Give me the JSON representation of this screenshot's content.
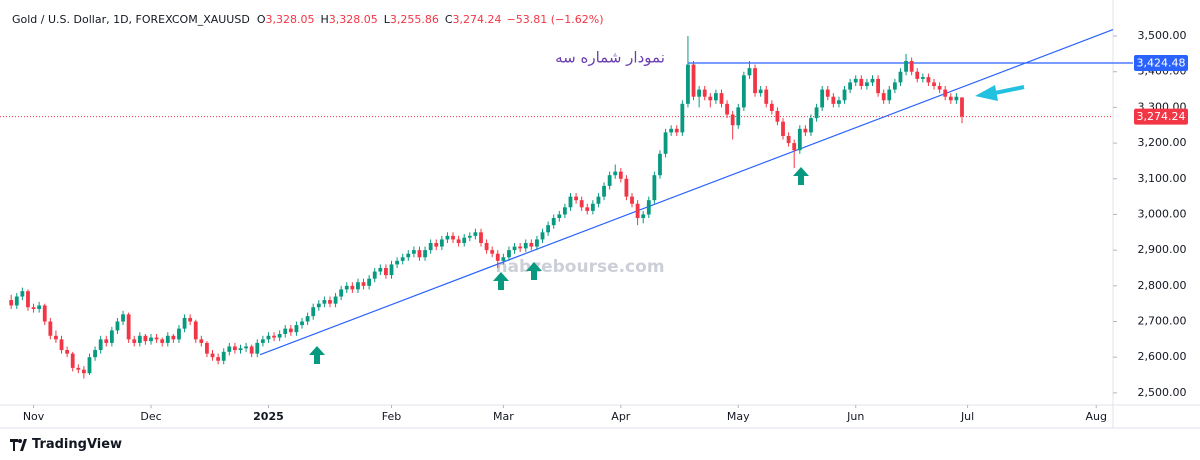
{
  "header": {
    "symbol": "Gold / U.S. Dollar, 1D, FOREXCOM_XAUUSD",
    "ohlc": [
      {
        "key": "O",
        "value": "3,328.05"
      },
      {
        "key": "H",
        "value": "3,328.05"
      },
      {
        "key": "L",
        "value": "3,255.86"
      },
      {
        "key": "C",
        "value": "3,274.24"
      }
    ],
    "change": "−53.81 (−1.62%)"
  },
  "chart_data": {
    "type": "candlestick",
    "up_color": "#089981",
    "down_color": "#f23645",
    "grid": false,
    "ylim": [
      2466,
      3601
    ],
    "yticks": [
      {
        "value": 2500,
        "label": "2,500.00"
      },
      {
        "value": 2600,
        "label": "2,600.00"
      },
      {
        "value": 2700,
        "label": "2,700.00"
      },
      {
        "value": 2800,
        "label": "2,800.00"
      },
      {
        "value": 2900,
        "label": "2,900.00"
      },
      {
        "value": 3000,
        "label": "3,000.00"
      },
      {
        "value": 3100,
        "label": "3,100.00"
      },
      {
        "value": 3200,
        "label": "3,200.00"
      },
      {
        "value": 3300,
        "label": "3,300.00"
      },
      {
        "value": 3400,
        "label": "3,400.00"
      },
      {
        "value": 3500,
        "label": "3,500.00"
      }
    ],
    "xlim": [
      -2,
      197
    ],
    "xticks": [
      {
        "value": 4,
        "label": "Nov"
      },
      {
        "value": 25,
        "label": "Dec"
      },
      {
        "value": 46,
        "label": "2025"
      },
      {
        "value": 68,
        "label": "Feb"
      },
      {
        "value": 88,
        "label": "Mar"
      },
      {
        "value": 109,
        "label": "Apr"
      },
      {
        "value": 130,
        "label": "May"
      },
      {
        "value": 151,
        "label": "Jun"
      },
      {
        "value": 171,
        "label": "Jul"
      },
      {
        "value": 194,
        "label": "Aug"
      }
    ],
    "candles": [
      [
        2760,
        2775,
        2735,
        2745
      ],
      [
        2745,
        2780,
        2735,
        2770
      ],
      [
        2770,
        2795,
        2760,
        2785
      ],
      [
        2785,
        2790,
        2730,
        2740
      ],
      [
        2740,
        2750,
        2725,
        2735
      ],
      [
        2735,
        2755,
        2725,
        2745
      ],
      [
        2745,
        2750,
        2690,
        2700
      ],
      [
        2700,
        2710,
        2650,
        2660
      ],
      [
        2660,
        2675,
        2640,
        2650
      ],
      [
        2650,
        2660,
        2610,
        2620
      ],
      [
        2620,
        2630,
        2600,
        2610
      ],
      [
        2610,
        2615,
        2560,
        2570
      ],
      [
        2570,
        2580,
        2555,
        2565
      ],
      [
        2565,
        2575,
        2540,
        2555
      ],
      [
        2555,
        2610,
        2550,
        2600
      ],
      [
        2600,
        2630,
        2590,
        2620
      ],
      [
        2620,
        2660,
        2610,
        2650
      ],
      [
        2650,
        2660,
        2630,
        2640
      ],
      [
        2640,
        2685,
        2630,
        2675
      ],
      [
        2675,
        2710,
        2665,
        2700
      ],
      [
        2700,
        2730,
        2690,
        2720
      ],
      [
        2720,
        2725,
        2640,
        2650
      ],
      [
        2650,
        2660,
        2630,
        2640
      ],
      [
        2640,
        2670,
        2630,
        2660
      ],
      [
        2660,
        2665,
        2635,
        2645
      ],
      [
        2645,
        2665,
        2635,
        2655
      ],
      [
        2655,
        2665,
        2640,
        2650
      ],
      [
        2650,
        2655,
        2630,
        2640
      ],
      [
        2640,
        2670,
        2630,
        2660
      ],
      [
        2660,
        2665,
        2640,
        2650
      ],
      [
        2650,
        2690,
        2640,
        2680
      ],
      [
        2680,
        2720,
        2670,
        2710
      ],
      [
        2710,
        2720,
        2690,
        2700
      ],
      [
        2700,
        2705,
        2640,
        2650
      ],
      [
        2650,
        2660,
        2630,
        2640
      ],
      [
        2640,
        2645,
        2600,
        2610
      ],
      [
        2610,
        2620,
        2590,
        2600
      ],
      [
        2600,
        2610,
        2580,
        2590
      ],
      [
        2590,
        2625,
        2580,
        2615
      ],
      [
        2615,
        2640,
        2605,
        2630
      ],
      [
        2630,
        2640,
        2610,
        2620
      ],
      [
        2620,
        2635,
        2610,
        2625
      ],
      [
        2625,
        2640,
        2615,
        2630
      ],
      [
        2630,
        2635,
        2600,
        2610
      ],
      [
        2610,
        2650,
        2600,
        2640
      ],
      [
        2640,
        2660,
        2630,
        2650
      ],
      [
        2650,
        2670,
        2640,
        2660
      ],
      [
        2660,
        2670,
        2645,
        2655
      ],
      [
        2655,
        2675,
        2645,
        2665
      ],
      [
        2665,
        2690,
        2655,
        2680
      ],
      [
        2680,
        2690,
        2660,
        2670
      ],
      [
        2670,
        2700,
        2660,
        2690
      ],
      [
        2690,
        2710,
        2680,
        2700
      ],
      [
        2700,
        2725,
        2690,
        2715
      ],
      [
        2715,
        2750,
        2705,
        2740
      ],
      [
        2740,
        2760,
        2730,
        2750
      ],
      [
        2750,
        2770,
        2740,
        2760
      ],
      [
        2760,
        2770,
        2740,
        2750
      ],
      [
        2750,
        2780,
        2740,
        2770
      ],
      [
        2770,
        2800,
        2760,
        2790
      ],
      [
        2790,
        2810,
        2780,
        2800
      ],
      [
        2800,
        2810,
        2780,
        2790
      ],
      [
        2790,
        2820,
        2780,
        2810
      ],
      [
        2810,
        2820,
        2790,
        2800
      ],
      [
        2800,
        2830,
        2790,
        2820
      ],
      [
        2820,
        2850,
        2810,
        2840
      ],
      [
        2840,
        2860,
        2830,
        2850
      ],
      [
        2850,
        2860,
        2820,
        2830
      ],
      [
        2830,
        2870,
        2820,
        2860
      ],
      [
        2860,
        2880,
        2850,
        2870
      ],
      [
        2870,
        2890,
        2860,
        2880
      ],
      [
        2880,
        2900,
        2870,
        2890
      ],
      [
        2890,
        2910,
        2880,
        2900
      ],
      [
        2900,
        2910,
        2870,
        2880
      ],
      [
        2880,
        2910,
        2870,
        2900
      ],
      [
        2900,
        2930,
        2890,
        2920
      ],
      [
        2920,
        2930,
        2900,
        2910
      ],
      [
        2910,
        2940,
        2900,
        2930
      ],
      [
        2930,
        2950,
        2920,
        2940
      ],
      [
        2940,
        2950,
        2920,
        2930
      ],
      [
        2930,
        2940,
        2910,
        2920
      ],
      [
        2920,
        2945,
        2910,
        2935
      ],
      [
        2935,
        2950,
        2925,
        2940
      ],
      [
        2940,
        2960,
        2930,
        2950
      ],
      [
        2950,
        2960,
        2910,
        2920
      ],
      [
        2920,
        2930,
        2890,
        2900
      ],
      [
        2900,
        2910,
        2880,
        2890
      ],
      [
        2890,
        2900,
        2850,
        2870
      ],
      [
        2870,
        2890,
        2860,
        2880
      ],
      [
        2880,
        2910,
        2870,
        2900
      ],
      [
        2900,
        2920,
        2890,
        2910
      ],
      [
        2910,
        2920,
        2895,
        2905
      ],
      [
        2905,
        2930,
        2895,
        2920
      ],
      [
        2920,
        2930,
        2900,
        2910
      ],
      [
        2910,
        2940,
        2900,
        2930
      ],
      [
        2930,
        2960,
        2920,
        2950
      ],
      [
        2950,
        2980,
        2940,
        2970
      ],
      [
        2970,
        3000,
        2960,
        2990
      ],
      [
        2990,
        3010,
        2980,
        3000
      ],
      [
        3000,
        3030,
        2990,
        3020
      ],
      [
        3020,
        3060,
        3010,
        3050
      ],
      [
        3050,
        3060,
        3030,
        3040
      ],
      [
        3040,
        3050,
        3010,
        3020
      ],
      [
        3020,
        3030,
        3000,
        3010
      ],
      [
        3010,
        3040,
        3000,
        3030
      ],
      [
        3030,
        3060,
        3020,
        3050
      ],
      [
        3050,
        3090,
        3040,
        3080
      ],
      [
        3080,
        3120,
        3070,
        3110
      ],
      [
        3110,
        3140,
        3100,
        3120
      ],
      [
        3120,
        3130,
        3090,
        3100
      ],
      [
        3100,
        3110,
        3040,
        3050
      ],
      [
        3050,
        3060,
        3020,
        3030
      ],
      [
        3030,
        3040,
        2970,
        2990
      ],
      [
        2990,
        3010,
        2975,
        3000
      ],
      [
        3000,
        3050,
        2990,
        3040
      ],
      [
        3040,
        3120,
        3030,
        3110
      ],
      [
        3110,
        3180,
        3100,
        3170
      ],
      [
        3170,
        3240,
        3160,
        3230
      ],
      [
        3230,
        3250,
        3220,
        3240
      ],
      [
        3240,
        3250,
        3220,
        3230
      ],
      [
        3230,
        3320,
        3220,
        3310
      ],
      [
        3310,
        3500,
        3300,
        3420
      ],
      [
        3420,
        3430,
        3320,
        3330
      ],
      [
        3330,
        3360,
        3300,
        3350
      ],
      [
        3350,
        3360,
        3320,
        3330
      ],
      [
        3330,
        3340,
        3300,
        3320
      ],
      [
        3320,
        3350,
        3310,
        3340
      ],
      [
        3340,
        3350,
        3300,
        3310
      ],
      [
        3310,
        3320,
        3270,
        3280
      ],
      [
        3280,
        3290,
        3210,
        3250
      ],
      [
        3250,
        3310,
        3240,
        3300
      ],
      [
        3300,
        3400,
        3290,
        3390
      ],
      [
        3390,
        3430,
        3380,
        3410
      ],
      [
        3410,
        3420,
        3330,
        3340
      ],
      [
        3340,
        3360,
        3330,
        3350
      ],
      [
        3350,
        3360,
        3300,
        3310
      ],
      [
        3310,
        3320,
        3280,
        3290
      ],
      [
        3290,
        3300,
        3250,
        3260
      ],
      [
        3260,
        3270,
        3210,
        3220
      ],
      [
        3220,
        3230,
        3190,
        3200
      ],
      [
        3200,
        3210,
        3130,
        3180
      ],
      [
        3180,
        3250,
        3170,
        3240
      ],
      [
        3240,
        3250,
        3220,
        3230
      ],
      [
        3230,
        3280,
        3220,
        3270
      ],
      [
        3270,
        3310,
        3260,
        3300
      ],
      [
        3300,
        3360,
        3290,
        3350
      ],
      [
        3350,
        3360,
        3320,
        3330
      ],
      [
        3330,
        3340,
        3300,
        3310
      ],
      [
        3310,
        3330,
        3300,
        3320
      ],
      [
        3320,
        3360,
        3310,
        3350
      ],
      [
        3350,
        3380,
        3340,
        3370
      ],
      [
        3370,
        3390,
        3360,
        3380
      ],
      [
        3380,
        3390,
        3350,
        3360
      ],
      [
        3360,
        3380,
        3350,
        3370
      ],
      [
        3370,
        3390,
        3360,
        3380
      ],
      [
        3380,
        3390,
        3330,
        3340
      ],
      [
        3340,
        3350,
        3310,
        3320
      ],
      [
        3320,
        3360,
        3310,
        3350
      ],
      [
        3350,
        3380,
        3340,
        3370
      ],
      [
        3370,
        3410,
        3360,
        3400
      ],
      [
        3400,
        3450,
        3390,
        3430
      ],
      [
        3430,
        3440,
        3390,
        3400
      ],
      [
        3400,
        3410,
        3370,
        3380
      ],
      [
        3380,
        3395,
        3370,
        3385
      ],
      [
        3385,
        3395,
        3360,
        3370
      ],
      [
        3370,
        3380,
        3350,
        3360
      ],
      [
        3360,
        3370,
        3340,
        3350
      ],
      [
        3350,
        3360,
        3320,
        3330
      ],
      [
        3330,
        3340,
        3310,
        3320
      ],
      [
        3320,
        3340,
        3310,
        3330
      ],
      [
        3328.05,
        3328.05,
        3255.86,
        3274.24
      ]
    ],
    "resistance": {
      "value": 3424.48,
      "label": "3,424.48",
      "x_start": 121,
      "color": "#2962ff"
    },
    "last_price": {
      "value": 3274.24,
      "label": "3,274.24",
      "color": "#f23645"
    },
    "trendline": {
      "x": [
        44.5,
        197
      ],
      "y": [
        2607,
        3518
      ],
      "color": "#2962ff"
    },
    "annotation": "نمودار شماره سه",
    "watermark": "nabzebourse.com"
  },
  "footer": {
    "brand": "TradingView"
  }
}
